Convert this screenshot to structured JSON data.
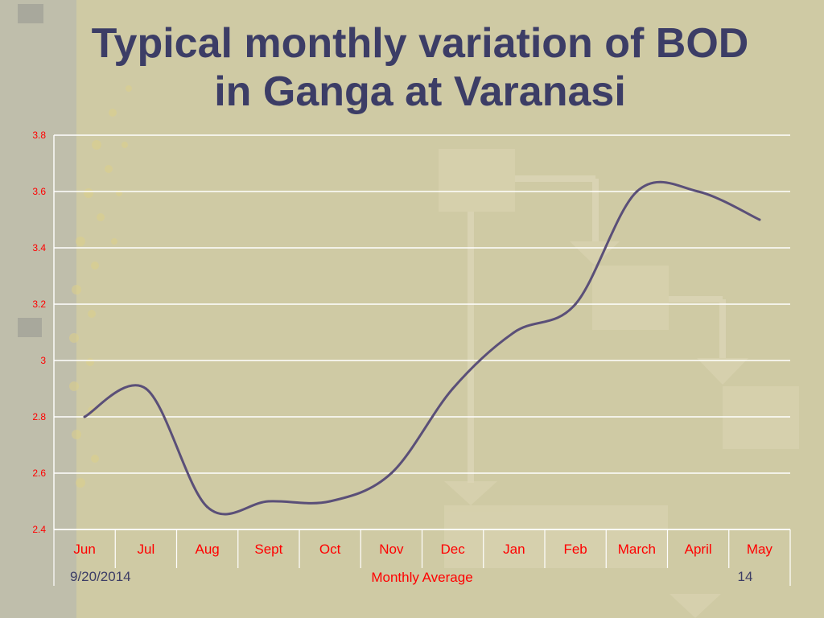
{
  "slide": {
    "title_line1": "Typical monthly variation of BOD",
    "title_line2": "in Ganga at Varanasi",
    "date": "9/20/2014",
    "page_number": "14"
  },
  "colors": {
    "background": "#cfcaa4",
    "title": "#3c3d66",
    "line": "#5a4f78",
    "tick_labels": "#ff0000",
    "gridlines": "#ffffff"
  },
  "chart_data": {
    "type": "line",
    "categories": [
      "Jun",
      "Jul",
      "Aug",
      "Sept",
      "Oct",
      "Nov",
      "Dec",
      "Jan",
      "Feb",
      "March",
      "April",
      "May"
    ],
    "series": [
      {
        "values": [
          2.8,
          2.9,
          2.48,
          2.5,
          2.5,
          2.6,
          2.9,
          3.1,
          3.2,
          3.6,
          3.6,
          3.5
        ]
      }
    ],
    "xlabel": "Monthly Average",
    "ylabel": "",
    "ylim": [
      2.4,
      3.8
    ],
    "yticks": [
      "2.4",
      "2.6",
      "2.8",
      "3",
      "3.2",
      "3.4",
      "3.6",
      "3.8"
    ],
    "grid": true,
    "smooth": true,
    "legend": "none"
  }
}
